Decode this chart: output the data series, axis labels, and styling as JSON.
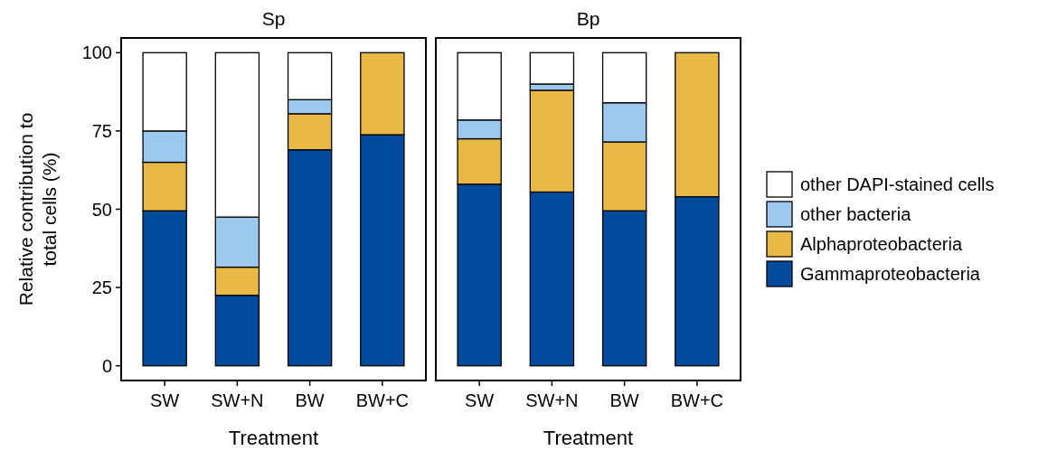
{
  "chart_data": [
    {
      "type": "bar",
      "title": "Sp",
      "xlabel": "Treatment",
      "ylabel": "Relative contribution to total cells (%)",
      "stacked": true,
      "categories": [
        "SW",
        "SW+N",
        "BW",
        "BW+C"
      ],
      "ylim": [
        -4.7,
        104.7
      ],
      "yticks": [
        0,
        25,
        50,
        75,
        100
      ],
      "grid": false,
      "series": [
        {
          "color": "#004b9b",
          "values": [
            49.5,
            22.5,
            69,
            73.8
          ]
        },
        {
          "color": "#e9b946",
          "values": [
            15.5,
            9,
            11.5,
            26.2
          ]
        },
        {
          "color": "#9ec9ef",
          "values": [
            10,
            16,
            4.5,
            0
          ]
        },
        {
          "color": "#ffffff",
          "values": [
            25,
            52.5,
            15,
            0
          ]
        }
      ]
    },
    {
      "type": "bar",
      "title": "Bp",
      "xlabel": "Treatment",
      "stacked": true,
      "categories": [
        "SW",
        "SW+N",
        "BW",
        "BW+C"
      ],
      "ylim": [
        -4.7,
        104.7
      ],
      "tick_labels": "x",
      "legend": "right",
      "grid": false,
      "series": [
        {
          "name": "Gammaproteobacteria",
          "color": "#004b9b",
          "values": [
            58,
            55.5,
            49.5,
            54
          ]
        },
        {
          "name": "Alphaproteobacteria",
          "color": "#e9b946",
          "values": [
            14.5,
            32.5,
            22,
            46
          ]
        },
        {
          "name": "other bacteria",
          "color": "#9ec9ef",
          "values": [
            6,
            2,
            12.5,
            0
          ]
        },
        {
          "name": "other DAPI-stained cells",
          "color": "#ffffff",
          "values": [
            21.5,
            10,
            16,
            0
          ]
        }
      ]
    }
  ]
}
